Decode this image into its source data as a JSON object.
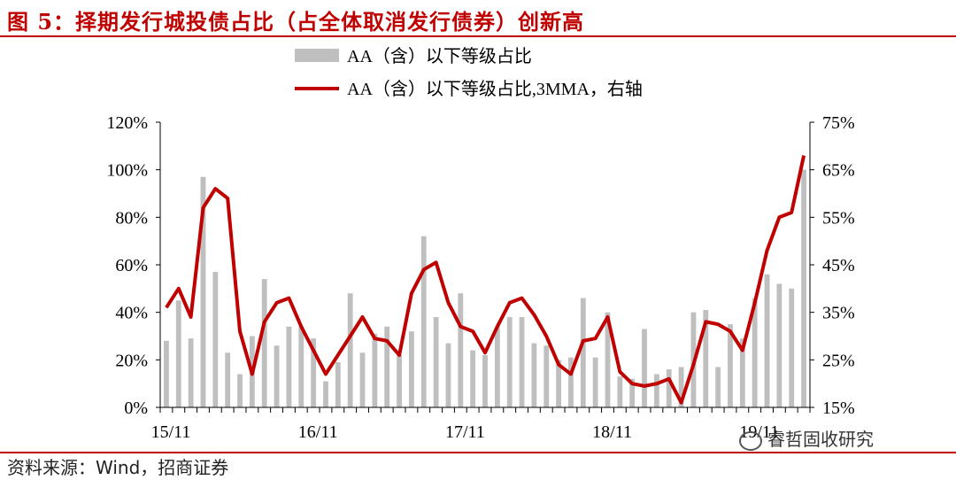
{
  "figure": {
    "title": "图 5：择期发行城投债占比（占全体取消发行债券）创新高",
    "source": "资料来源：Wind，招商证券",
    "watermark": "睿哲固收研究"
  },
  "colors": {
    "bar": "#bfbfbf",
    "line": "#c00000",
    "title": "#c00000",
    "axis": "#000000"
  },
  "chart_data": {
    "type": "bar",
    "legend": [
      {
        "name": "AA（含）以下等级占比",
        "kind": "bar"
      },
      {
        "name": "AA（含）以下等级占比,3MMA，右轴",
        "kind": "line"
      }
    ],
    "legend_position": "top",
    "grid": false,
    "x_tick_labels": [
      "15/11",
      "16/11",
      "17/11",
      "18/11",
      "19/11"
    ],
    "x_tick_indices": [
      0,
      12,
      24,
      36,
      48
    ],
    "y_left": {
      "min": 0,
      "max": 120,
      "step": 20,
      "unit": "%"
    },
    "y_right": {
      "min": 15,
      "max": 75,
      "step": 10,
      "unit": "%"
    },
    "series": [
      {
        "name": "AA（含）以下等级占比",
        "axis": "left",
        "values": [
          28,
          45,
          29,
          97,
          57,
          23,
          14,
          30,
          54,
          26,
          34,
          34,
          29,
          11,
          19,
          48,
          23,
          31,
          34,
          22,
          32,
          72,
          38,
          27,
          48,
          24,
          22,
          34,
          38,
          38,
          27,
          26,
          20,
          21,
          46,
          21,
          40,
          13,
          12,
          33,
          14,
          16,
          17,
          40,
          41,
          17,
          35,
          29,
          46,
          56,
          52,
          50,
          100
        ]
      },
      {
        "name": "AA（含）以下等级占比,3MMA，右轴",
        "axis": "right",
        "values": [
          36,
          40,
          34,
          57,
          61,
          59,
          31,
          22,
          33,
          37,
          38,
          32,
          27,
          22,
          26,
          30,
          34,
          29.5,
          29,
          26,
          39,
          44,
          45.5,
          37,
          32,
          31,
          26.5,
          32,
          37,
          38,
          34.5,
          30,
          24,
          22,
          29,
          29.5,
          34,
          22.5,
          20,
          19.5,
          20,
          21,
          16,
          24,
          33,
          32.5,
          31,
          27,
          37,
          48,
          55,
          56,
          68
        ]
      }
    ]
  }
}
